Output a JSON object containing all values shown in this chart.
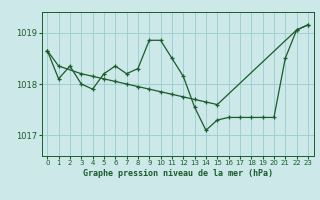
{
  "title": "Graphe pression niveau de la mer (hPa)",
  "background_color": "#cce8e8",
  "grid_color": "#99cccc",
  "line_color": "#1a5c2a",
  "xlim": [
    -0.5,
    23.5
  ],
  "ylim": [
    1016.6,
    1019.4
  ],
  "yticks": [
    1017,
    1018,
    1019
  ],
  "xticks": [
    0,
    1,
    2,
    3,
    4,
    5,
    6,
    7,
    8,
    9,
    10,
    11,
    12,
    13,
    14,
    15,
    16,
    17,
    18,
    19,
    20,
    21,
    22,
    23
  ],
  "series1_x": [
    0,
    1,
    2,
    3,
    4,
    5,
    6,
    7,
    8,
    9,
    10,
    11,
    12,
    13,
    14,
    15,
    16,
    17,
    18,
    19,
    20,
    21,
    22,
    23
  ],
  "series1_y": [
    1018.65,
    1018.1,
    1018.35,
    1018.0,
    1017.9,
    1018.2,
    1018.35,
    1018.2,
    1018.3,
    1018.85,
    1018.85,
    1018.5,
    1018.15,
    1017.55,
    1017.1,
    1017.3,
    1017.35,
    1017.35,
    1017.35,
    1017.35,
    1017.35,
    1018.5,
    1019.05,
    1019.15
  ],
  "series2_x": [
    0,
    1,
    3,
    4,
    5,
    6,
    7,
    8,
    9,
    10,
    11,
    12,
    13,
    14,
    15,
    22,
    23
  ],
  "series2_y": [
    1018.65,
    1018.35,
    1018.2,
    1018.15,
    1018.1,
    1018.05,
    1018.0,
    1017.95,
    1017.9,
    1017.85,
    1017.8,
    1017.75,
    1017.7,
    1017.65,
    1017.6,
    1019.05,
    1019.15
  ],
  "figsize": [
    3.2,
    2.0
  ],
  "dpi": 100
}
